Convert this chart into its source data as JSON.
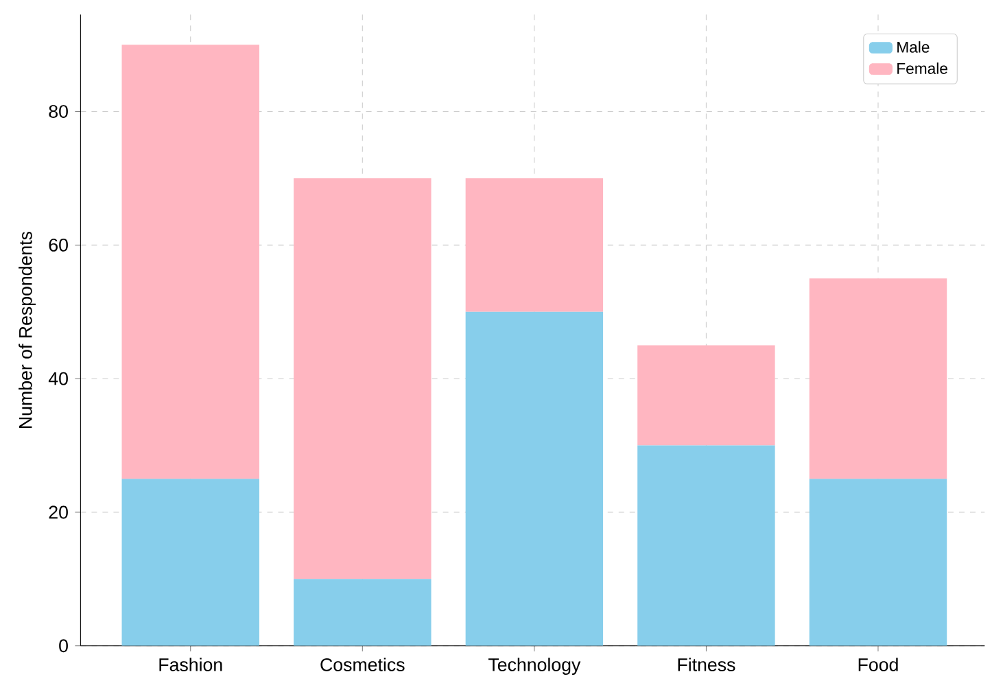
{
  "chart_data": {
    "type": "bar",
    "stacked": true,
    "ylabel": "Number of Respondents",
    "categories": [
      "Fashion",
      "Cosmetics",
      "Technology",
      "Fitness",
      "Food"
    ],
    "series": [
      {
        "name": "Male",
        "color": "#87ceeb",
        "values": [
          25,
          10,
          50,
          30,
          25
        ]
      },
      {
        "name": "Female",
        "color": "#ffb6c1",
        "values": [
          65,
          60,
          20,
          15,
          30
        ]
      }
    ],
    "ylim": [
      0,
      94.5
    ],
    "yticks": [
      0,
      20,
      40,
      60,
      80
    ],
    "grid": true,
    "legend": "top right"
  }
}
